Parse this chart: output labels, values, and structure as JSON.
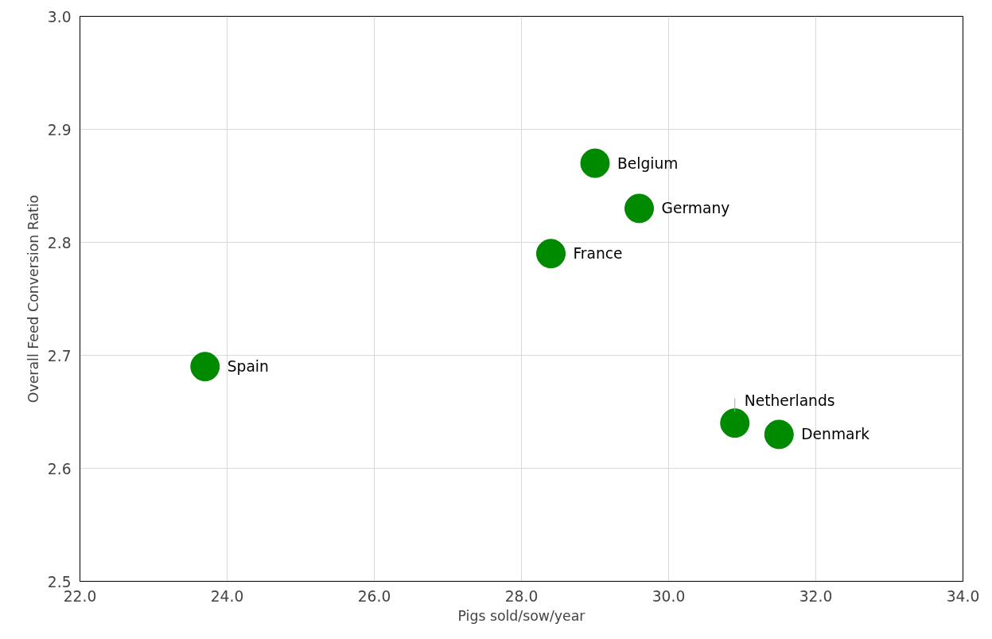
{
  "chart_data": {
    "type": "scatter",
    "xlabel": "Pigs sold/sow/year",
    "ylabel": "Overall Feed Conversion Ratio",
    "x": [
      23.7,
      28.4,
      29.0,
      29.6,
      30.9,
      31.5
    ],
    "series": [
      {
        "color": "#008a00",
        "values": [
          2.69,
          2.79,
          2.87,
          2.83,
          2.64,
          2.63
        ]
      }
    ],
    "annotations": [
      {
        "text": "Spain",
        "x": 23.7,
        "y": 2.69
      },
      {
        "text": "France",
        "x": 28.4,
        "y": 2.79
      },
      {
        "text": "Belgium",
        "x": 29.0,
        "y": 2.87
      },
      {
        "text": "Germany",
        "x": 29.6,
        "y": 2.83
      },
      {
        "text": "Netherlands",
        "x": 30.9,
        "y": 2.64
      },
      {
        "text": "Denmark",
        "x": 31.5,
        "y": 2.63
      }
    ],
    "xlim": [
      22,
      34
    ],
    "ylim": [
      2.5,
      3.0
    ],
    "xticks": [
      {
        "value": 22,
        "label": "22.0"
      },
      {
        "value": 24,
        "label": "24.0"
      },
      {
        "value": 26,
        "label": "26.0"
      },
      {
        "value": 28,
        "label": "28.0"
      },
      {
        "value": 30,
        "label": "30.0"
      },
      {
        "value": 32,
        "label": "32.0"
      },
      {
        "value": 34,
        "label": "34.0"
      }
    ],
    "yticks": [
      {
        "value": 2.5,
        "label": "2.5"
      },
      {
        "value": 2.6,
        "label": "2.6"
      },
      {
        "value": 2.7,
        "label": "2.7"
      },
      {
        "value": 2.8,
        "label": "2.8"
      },
      {
        "value": 2.9,
        "label": "2.9"
      },
      {
        "value": 3.0,
        "label": "3.0"
      }
    ],
    "grid": true,
    "marker": "circle"
  }
}
